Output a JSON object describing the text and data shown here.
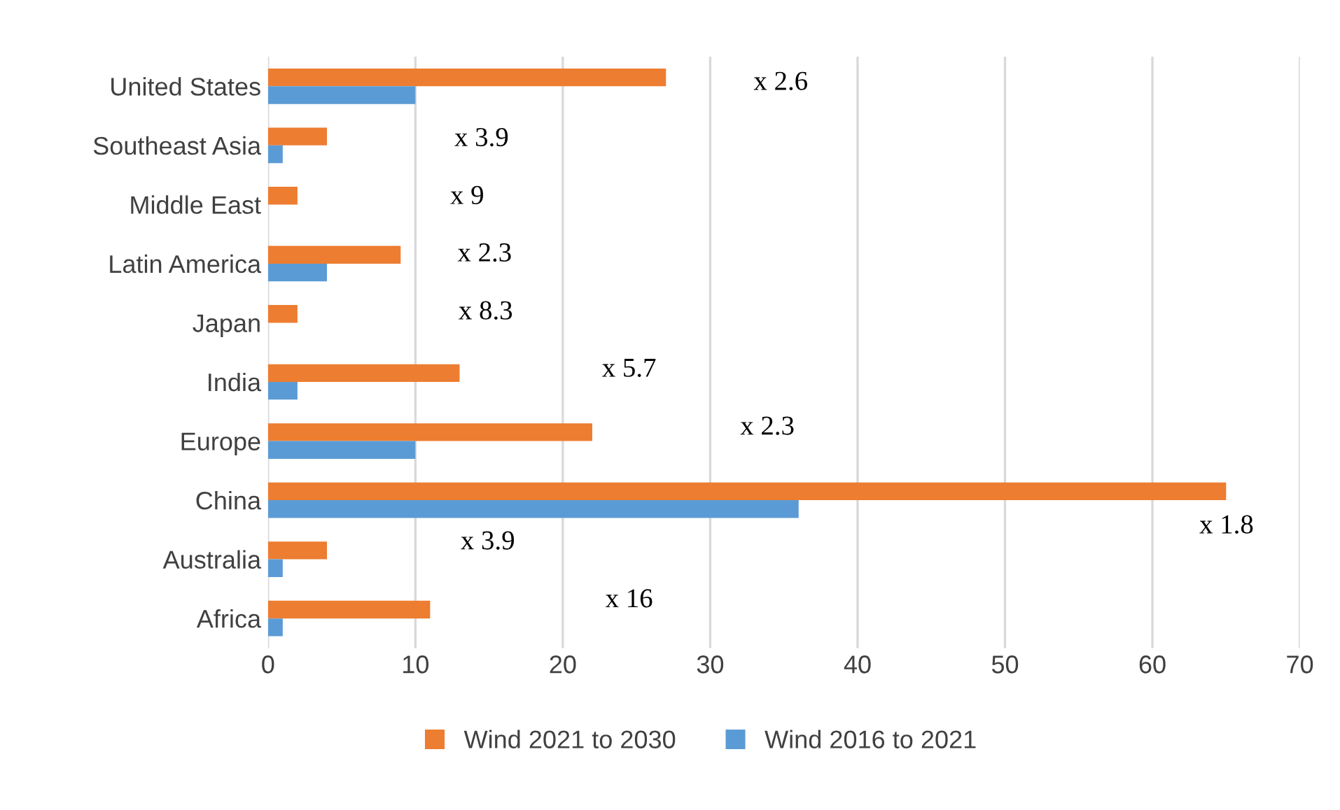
{
  "chart_data": {
    "type": "bar",
    "orientation": "horizontal",
    "categories": [
      "United States",
      "Southeast Asia",
      "Middle East",
      "Latin America",
      "Japan",
      "India",
      "Europe",
      "China",
      "Australia",
      "Africa"
    ],
    "series": [
      {
        "name": "Wind 2021 to 2030",
        "color": "#ed7d31",
        "values": [
          27,
          4,
          2,
          9,
          2,
          13,
          22,
          65,
          4,
          11
        ]
      },
      {
        "name": "Wind 2016 to 2021",
        "color": "#5b9bd5",
        "values": [
          10,
          1,
          null,
          4,
          null,
          2,
          10,
          36,
          1,
          1
        ]
      }
    ],
    "xlim": [
      0,
      70
    ],
    "xticks": [
      0,
      10,
      20,
      30,
      40,
      50,
      60,
      70
    ],
    "grid": "x",
    "legend": "bottom",
    "annotations": [
      "x 2.6",
      "x 3.9",
      "x 9",
      "x 2.3",
      "x 8.3",
      "x 5.7",
      "x 2.3",
      "x 1.8",
      "x 3.9",
      "x 16"
    ]
  }
}
